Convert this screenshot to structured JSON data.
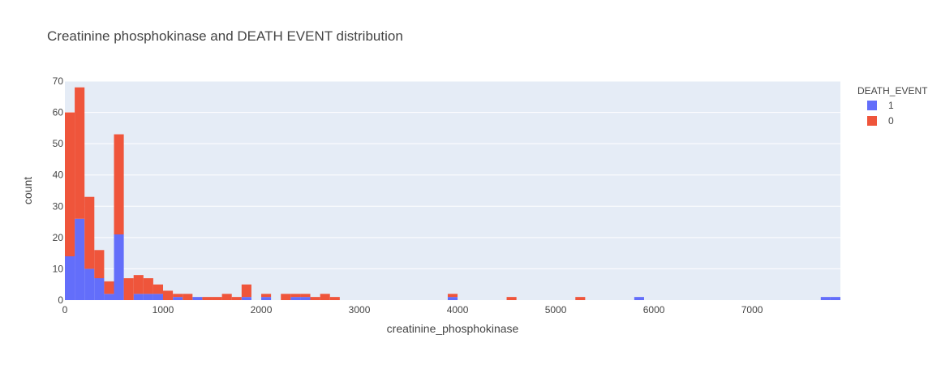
{
  "chart_data": {
    "type": "bar",
    "stacked": true,
    "title": "Creatinine phosphokinase and DEATH EVENT distribution",
    "xlabel": "creatinine_phosphokinase",
    "ylabel": "count",
    "xlim": [
      0,
      7900
    ],
    "ylim": [
      0,
      70
    ],
    "bin_width": 100,
    "x_ticks": [
      "0",
      "1000",
      "2000",
      "3000",
      "4000",
      "5000",
      "6000",
      "7000"
    ],
    "x_tick_values": [
      0,
      1000,
      2000,
      3000,
      4000,
      5000,
      6000,
      7000
    ],
    "y_ticks": [
      "0",
      "10",
      "20",
      "30",
      "40",
      "50",
      "60",
      "70"
    ],
    "y_tick_values": [
      0,
      10,
      20,
      30,
      40,
      50,
      60,
      70
    ],
    "legend": {
      "title": "DEATH_EVENT",
      "placement": "right"
    },
    "series": [
      {
        "name": "1",
        "color": "#636efa",
        "bins_start": [
          0,
          100,
          200,
          300,
          400,
          500,
          700,
          800,
          900,
          1100,
          1300,
          1800,
          2000,
          2300,
          2400,
          3900,
          5800,
          7700,
          7800
        ],
        "values": [
          14,
          26,
          10,
          7,
          2,
          21,
          2,
          2,
          2,
          1,
          1,
          1,
          1,
          1,
          1,
          1,
          1,
          1,
          1
        ]
      },
      {
        "name": "0",
        "color": "#ef553b",
        "bins_start": [
          0,
          100,
          200,
          300,
          400,
          500,
          600,
          700,
          800,
          900,
          1000,
          1100,
          1200,
          1400,
          1500,
          1600,
          1700,
          1800,
          2000,
          2200,
          2300,
          2400,
          2500,
          2600,
          2700,
          3900,
          4500,
          5200
        ],
        "values": [
          46,
          42,
          23,
          9,
          4,
          32,
          7,
          6,
          5,
          3,
          3,
          1,
          2,
          1,
          1,
          2,
          1,
          4,
          1,
          2,
          1,
          1,
          1,
          2,
          1,
          1,
          1,
          1
        ]
      }
    ]
  }
}
